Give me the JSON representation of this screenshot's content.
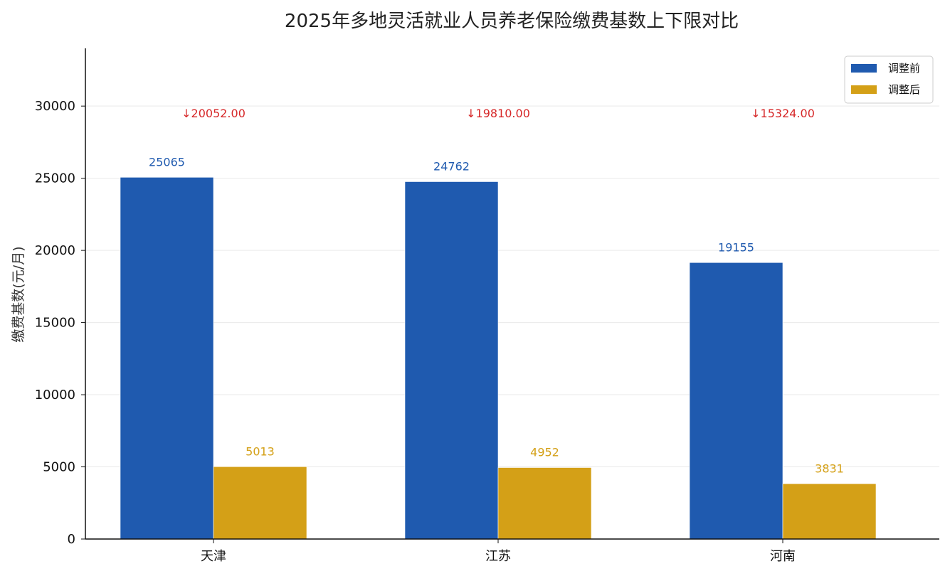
{
  "chart_data": {
    "type": "bar",
    "title": "2025年多地灵活就业人员养老保险缴费基数上下限对比",
    "xlabel": "",
    "ylabel": "缴费基数(元/月)",
    "categories": [
      "天津",
      "江苏",
      "河南"
    ],
    "series": [
      {
        "name": "调整前",
        "values": [
          25065,
          24762,
          19155
        ],
        "color": "#1f5aaf"
      },
      {
        "name": "调整后",
        "values": [
          5013,
          4952,
          3831
        ],
        "color": "#d4a017"
      }
    ],
    "annotations": [
      "↓20052.00",
      "↓19810.00",
      "↓15324.00"
    ],
    "annotation_color": "#d62728",
    "ylim": [
      0,
      34000
    ],
    "yticks": [
      0,
      5000,
      10000,
      15000,
      20000,
      25000,
      30000
    ],
    "grid": true,
    "legend_position": "top-right"
  }
}
